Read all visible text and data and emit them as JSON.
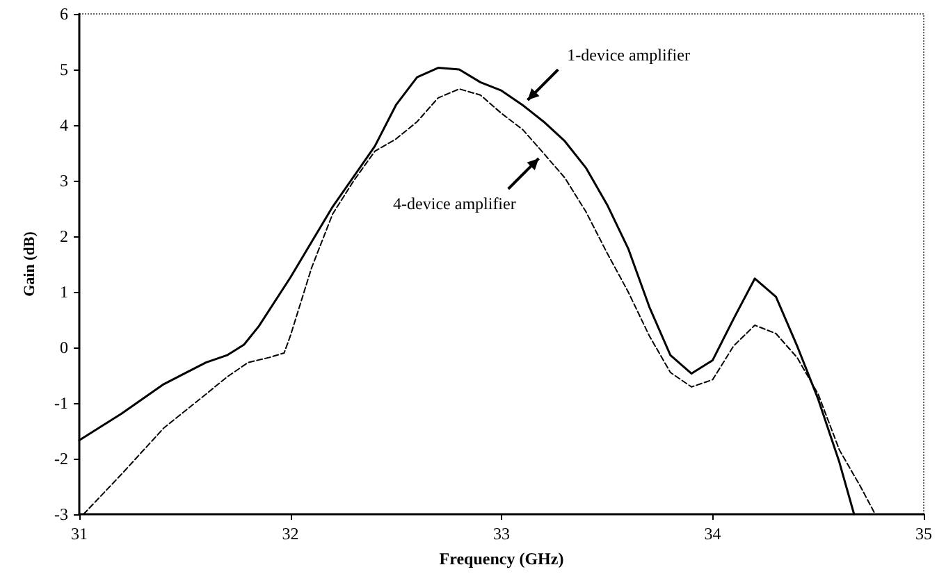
{
  "chart_data": {
    "type": "line",
    "xlabel": "Frequency (GHz)",
    "ylabel": "Gain (dB)",
    "xlim": [
      31,
      35
    ],
    "xticks": [
      31,
      32,
      33,
      34,
      35
    ],
    "ylim": [
      -3,
      6
    ],
    "yticks": [
      -3,
      -2,
      -1,
      0,
      1,
      2,
      3,
      4,
      5,
      6
    ],
    "grid": false,
    "marker": "none",
    "series": [
      {
        "color": "#000000",
        "line_style": "solid",
        "x": [
          31.0,
          31.2,
          31.4,
          31.6,
          31.7,
          31.78,
          31.85,
          32.0,
          32.2,
          32.4,
          32.5,
          32.6,
          32.7,
          32.8,
          32.9,
          33.0,
          33.1,
          33.2,
          33.3,
          33.4,
          33.5,
          33.6,
          33.7,
          33.8,
          33.9,
          34.0,
          34.1,
          34.2,
          34.3,
          34.4,
          34.5,
          34.6,
          34.67
        ],
        "values": [
          -1.67,
          -1.19,
          -0.66,
          -0.27,
          -0.14,
          0.05,
          0.38,
          1.26,
          2.53,
          3.62,
          4.36,
          4.86,
          5.03,
          5.0,
          4.77,
          4.62,
          4.36,
          4.06,
          3.71,
          3.23,
          2.57,
          1.78,
          0.73,
          -0.14,
          -0.47,
          -0.23,
          0.52,
          1.24,
          0.91,
          0.03,
          -0.93,
          -2.06,
          -3.0
        ]
      },
      {
        "color": "#000000",
        "line_style": "dashed",
        "x": [
          31.02,
          31.2,
          31.4,
          31.6,
          31.7,
          31.8,
          31.9,
          31.97,
          32.0,
          32.1,
          32.2,
          32.3,
          32.4,
          32.5,
          32.6,
          32.7,
          32.8,
          32.9,
          33.0,
          33.1,
          33.2,
          33.3,
          33.4,
          33.5,
          33.6,
          33.7,
          33.8,
          33.9,
          34.0,
          34.1,
          34.2,
          34.3,
          34.4,
          34.5,
          34.6,
          34.7,
          34.77
        ],
        "values": [
          -3.0,
          -2.28,
          -1.45,
          -0.84,
          -0.53,
          -0.27,
          -0.18,
          -0.1,
          0.21,
          1.43,
          2.4,
          3.0,
          3.53,
          3.75,
          4.06,
          4.49,
          4.65,
          4.54,
          4.21,
          3.92,
          3.49,
          3.05,
          2.44,
          1.7,
          1.0,
          0.21,
          -0.45,
          -0.71,
          -0.58,
          0.03,
          0.4,
          0.25,
          -0.18,
          -0.84,
          -1.84,
          -2.5,
          -3.0
        ]
      }
    ],
    "annotations": [
      {
        "text": "1-device amplifier",
        "x": 33.1,
        "y": 4.36
      },
      {
        "text": "4-device amplifier",
        "x": 33.2,
        "y": 3.49
      }
    ]
  }
}
